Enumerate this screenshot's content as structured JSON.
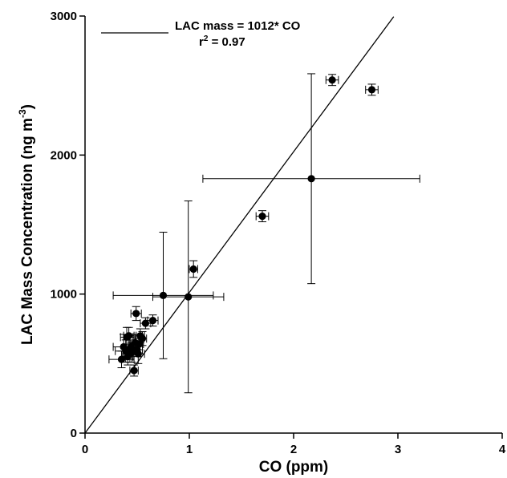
{
  "chart_data": {
    "type": "scatter",
    "xlabel": "CO (ppm)",
    "ylabel_main": "LAC Mass Concentration (ng m",
    "ylabel_sup": "-3",
    "ylabel_tail": ")",
    "xlim": [
      0,
      4
    ],
    "ylim": [
      0,
      3000
    ],
    "xticks": [
      0,
      1,
      2,
      3,
      4
    ],
    "yticks": [
      0,
      1000,
      2000,
      3000
    ],
    "xtick_labels": [
      "0",
      "1",
      "2",
      "3",
      "4"
    ],
    "ytick_labels": [
      "0",
      "1000",
      "2000",
      "3000"
    ],
    "grid": false,
    "legend": {
      "position": "top-left",
      "line_label": "LAC mass = 1012* CO",
      "r2_prefix": "r",
      "r2_sup": "2",
      "r2_suffix": " = 0.97"
    },
    "fit": {
      "slope": 1012,
      "intercept": 0,
      "x_range": [
        0,
        2.96
      ]
    },
    "points": [
      {
        "x": 0.35,
        "y": 530,
        "xerr": 0.12,
        "yerr": 60
      },
      {
        "x": 0.37,
        "y": 620,
        "xerr": 0.1,
        "yerr": 90
      },
      {
        "x": 0.39,
        "y": 590,
        "xerr": 0.1,
        "yerr": 80
      },
      {
        "x": 0.4,
        "y": 690,
        "xerr": 0.06,
        "yerr": 70
      },
      {
        "x": 0.41,
        "y": 550,
        "xerr": 0.05,
        "yerr": 60
      },
      {
        "x": 0.42,
        "y": 700,
        "xerr": 0.05,
        "yerr": 60
      },
      {
        "x": 0.43,
        "y": 600,
        "xerr": 0.06,
        "yerr": 90
      },
      {
        "x": 0.44,
        "y": 620,
        "xerr": 0.04,
        "yerr": 50
      },
      {
        "x": 0.45,
        "y": 580,
        "xerr": 0.05,
        "yerr": 70
      },
      {
        "x": 0.47,
        "y": 450,
        "xerr": 0.04,
        "yerr": 40
      },
      {
        "x": 0.48,
        "y": 650,
        "xerr": 0.05,
        "yerr": 60
      },
      {
        "x": 0.49,
        "y": 860,
        "xerr": 0.05,
        "yerr": 50
      },
      {
        "x": 0.5,
        "y": 600,
        "xerr": 0.05,
        "yerr": 50
      },
      {
        "x": 0.51,
        "y": 570,
        "xerr": 0.06,
        "yerr": 70
      },
      {
        "x": 0.52,
        "y": 640,
        "xerr": 0.04,
        "yerr": 40
      },
      {
        "x": 0.53,
        "y": 700,
        "xerr": 0.04,
        "yerr": 50
      },
      {
        "x": 0.55,
        "y": 680,
        "xerr": 0.04,
        "yerr": 50
      },
      {
        "x": 0.58,
        "y": 790,
        "xerr": 0.05,
        "yerr": 40
      },
      {
        "x": 0.65,
        "y": 810,
        "xerr": 0.05,
        "yerr": 40
      },
      {
        "x": 0.75,
        "y": 990,
        "xerr": 0.48,
        "yerr": 455
      },
      {
        "x": 0.99,
        "y": 980,
        "xerr": 0.34,
        "yerr": 690
      },
      {
        "x": 1.04,
        "y": 1180,
        "xerr": 0.04,
        "yerr": 60
      },
      {
        "x": 1.7,
        "y": 1560,
        "xerr": 0.06,
        "yerr": 40
      },
      {
        "x": 2.17,
        "y": 1830,
        "xerr": 1.04,
        "yerr": 755
      },
      {
        "x": 2.37,
        "y": 2540,
        "xerr": 0.06,
        "yerr": 40
      },
      {
        "x": 2.75,
        "y": 2470,
        "xerr": 0.06,
        "yerr": 40
      }
    ]
  }
}
